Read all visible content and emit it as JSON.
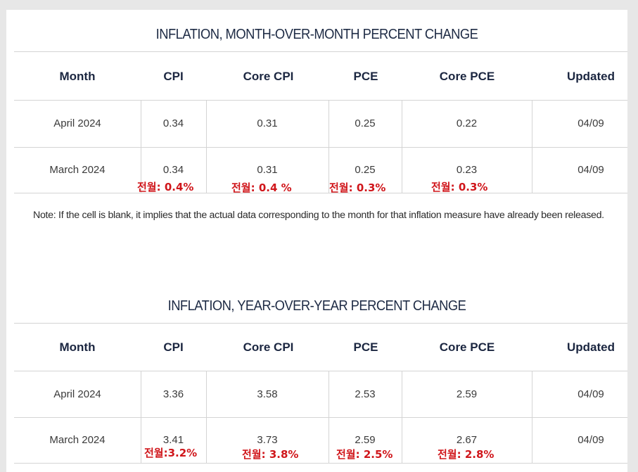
{
  "mom": {
    "title": "INFLATION, MONTH-OVER-MONTH PERCENT CHANGE",
    "headers": [
      "Month",
      "CPI",
      "Core CPI",
      "PCE",
      "Core PCE",
      "Updated"
    ],
    "rows": [
      [
        "April 2024",
        "0.34",
        "0.31",
        "0.25",
        "0.22",
        "04/09"
      ],
      [
        "March 2024",
        "0.34",
        "0.31",
        "0.25",
        "0.23",
        "04/09"
      ]
    ],
    "annotations": [
      "전월: 0.4%",
      "전월: 0.4 %",
      "전월: 0.3%",
      "전월: 0.3%"
    ]
  },
  "note": "Note: If the cell is blank, it implies that the actual data corresponding to the month for that inflation measure have already been released.",
  "yoy": {
    "title": "INFLATION, YEAR-OVER-YEAR PERCENT CHANGE",
    "headers": [
      "Month",
      "CPI",
      "Core CPI",
      "PCE",
      "Core PCE",
      "Updated"
    ],
    "rows": [
      [
        "April 2024",
        "3.36",
        "3.58",
        "2.53",
        "2.59",
        "04/09"
      ],
      [
        "March 2024",
        "3.41",
        "3.73",
        "2.59",
        "2.67",
        "04/09"
      ]
    ],
    "annotations": [
      "전월:3.2%",
      "전월: 3.8%",
      "전월: 2.5%",
      "전월: 2.8%"
    ]
  },
  "colors": {
    "header_text": "#1b2640",
    "title_text": "#1e2b45",
    "annotation": "#d0161b",
    "grid": "#d4d4d4"
  }
}
